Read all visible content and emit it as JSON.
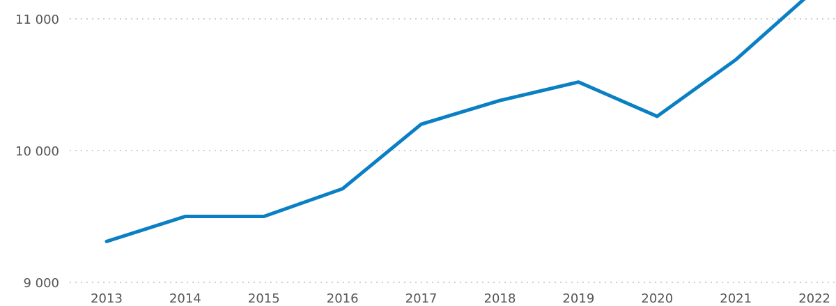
{
  "chart_data": {
    "type": "line",
    "title": "",
    "xlabel": "",
    "ylabel": "",
    "categories": [
      "2013",
      "2014",
      "2015",
      "2016",
      "2017",
      "2018",
      "2019",
      "2020",
      "2021",
      "2022"
    ],
    "series": [
      {
        "values": [
          9310,
          9500,
          9500,
          9710,
          10200,
          10380,
          10520,
          10260,
          10690,
          11220
        ]
      }
    ],
    "ylim": [
      9000,
      11000
    ],
    "y_ticks": [
      {
        "value": 9000,
        "label": "9 000"
      },
      {
        "value": 10000,
        "label": "10 000"
      },
      {
        "value": 11000,
        "label": "11 000"
      }
    ],
    "grid": true,
    "legend": "none",
    "colors": {
      "series": "#0a7fc4",
      "gridline": "#cfcfcf",
      "tick_label": "#555555"
    }
  }
}
